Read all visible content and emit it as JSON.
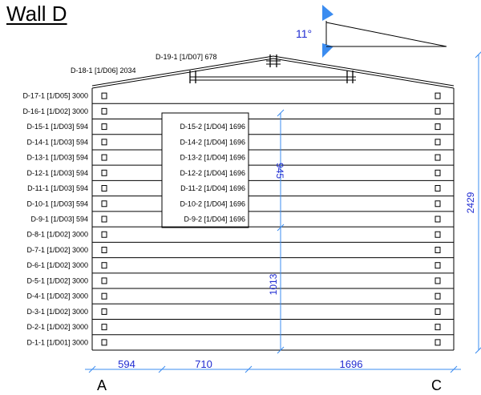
{
  "title": "Wall D",
  "roof_angle": "11°",
  "gable_logs": [
    {
      "label": "D-19-1 [1/D07] 678"
    },
    {
      "label": "D-18-1 [1/D06] 2034"
    }
  ],
  "logs": [
    {
      "label": "D-17-1 [1/D05] 3000"
    },
    {
      "label": "D-16-1 [1/D02] 3000"
    },
    {
      "label": "D-15-1 [1/D03] 594",
      "right": "D-15-2 [1/D04] 1696"
    },
    {
      "label": "D-14-1 [1/D03] 594",
      "right": "D-14-2 [1/D04] 1696"
    },
    {
      "label": "D-13-1 [1/D03] 594",
      "right": "D-13-2 [1/D04] 1696"
    },
    {
      "label": "D-12-1 [1/D03] 594",
      "right": "D-12-2 [1/D04] 1696"
    },
    {
      "label": "D-11-1 [1/D03] 594",
      "right": "D-11-2 [1/D04] 1696"
    },
    {
      "label": "D-10-1 [1/D03] 594",
      "right": "D-10-2 [1/D04] 1696"
    },
    {
      "label": "D-9-1 [1/D03] 594",
      "right": "D-9-2 [1/D04] 1696"
    },
    {
      "label": "D-8-1 [1/D02] 3000"
    },
    {
      "label": "D-7-1 [1/D02] 3000"
    },
    {
      "label": "D-6-1 [1/D02] 3000"
    },
    {
      "label": "D-5-1 [1/D02] 3000"
    },
    {
      "label": "D-4-1 [1/D02] 3000"
    },
    {
      "label": "D-3-1 [1/D02] 3000"
    },
    {
      "label": "D-2-1 [1/D02] 3000"
    },
    {
      "label": "D-1-1 [1/D01] 3000"
    }
  ],
  "dimensions": {
    "total_height": "2429",
    "opening_height": "945",
    "sill_height": "1013",
    "bottom": [
      "594",
      "710",
      "1696"
    ]
  },
  "corners": {
    "left": "A",
    "right": "C"
  },
  "colors": {
    "dimension": "#1f2bd1",
    "arrow": "#3b8cf0",
    "line": "#000000"
  }
}
